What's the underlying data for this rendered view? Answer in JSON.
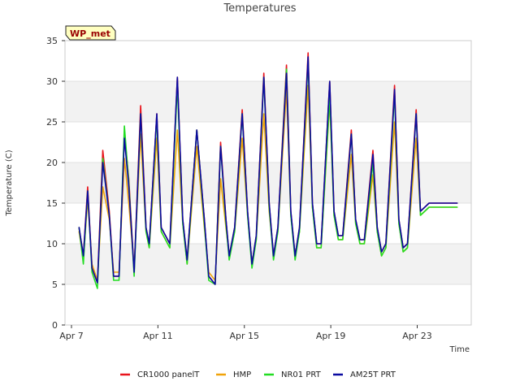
{
  "chart_data": {
    "type": "line",
    "title": "Temperatures",
    "xlabel": "Time",
    "ylabel": "Temperature (C)",
    "badge": "WP_met",
    "xlim": [
      6.7,
      25.5
    ],
    "ylim": [
      0,
      35
    ],
    "yticks": [
      0,
      5,
      10,
      15,
      20,
      25,
      30,
      35
    ],
    "xticks": [
      {
        "value": 7,
        "label": "Apr 7"
      },
      {
        "value": 11,
        "label": "Apr 11"
      },
      {
        "value": 15,
        "label": "Apr 15"
      },
      {
        "value": 19,
        "label": "Apr 19"
      },
      {
        "value": 23,
        "label": "Apr 23"
      }
    ],
    "grid": true,
    "legend_position": "bottom",
    "x": [
      7.35,
      7.55,
      7.75,
      7.95,
      8.2,
      8.45,
      8.75,
      8.95,
      9.2,
      9.45,
      9.65,
      9.9,
      10.2,
      10.45,
      10.6,
      10.95,
      11.15,
      11.55,
      11.9,
      12.15,
      12.35,
      12.8,
      13.15,
      13.35,
      13.65,
      13.9,
      14.15,
      14.3,
      14.55,
      14.9,
      15.15,
      15.35,
      15.55,
      15.9,
      16.15,
      16.35,
      16.55,
      16.95,
      17.15,
      17.35,
      17.55,
      17.95,
      18.15,
      18.35,
      18.55,
      18.95,
      19.15,
      19.35,
      19.55,
      19.95,
      20.15,
      20.35,
      20.55,
      20.95,
      21.15,
      21.35,
      21.55,
      21.95,
      22.15,
      22.35,
      22.55,
      22.95,
      23.15,
      23.35,
      23.55,
      23.95,
      24.15,
      24.35,
      24.55,
      24.85
    ],
    "series": [
      {
        "name": "CR1000 panelT",
        "color": "#e8141c",
        "values": [
          12,
          8.5,
          17,
          7,
          5.2,
          21.5,
          14,
          6,
          6,
          23.5,
          18,
          6.5,
          27,
          12,
          10,
          26,
          12,
          10,
          30.5,
          13,
          8,
          24,
          13,
          6,
          5,
          22.5,
          13,
          8.5,
          12,
          26.5,
          14,
          7.5,
          11,
          31,
          15,
          8.5,
          12,
          32,
          14,
          8.5,
          12,
          33.5,
          15,
          10,
          10,
          30,
          14,
          11,
          11,
          24,
          13,
          10.5,
          10.5,
          21.5,
          12,
          9,
          10,
          29.5,
          13,
          9.5,
          10,
          26.5,
          14,
          14.5,
          15,
          15,
          15,
          15,
          15,
          15
        ]
      },
      {
        "name": "HMP",
        "color": "#f0a30a",
        "values": [
          11.5,
          8,
          15.5,
          7.5,
          5.5,
          17,
          13,
          6.5,
          6.5,
          20.5,
          15,
          7,
          23.5,
          11.5,
          9.5,
          23,
          11.5,
          9.5,
          24,
          12.5,
          7.5,
          22,
          12,
          6.5,
          5.5,
          18,
          12,
          8.5,
          11.5,
          23,
          13.5,
          7.5,
          10.5,
          26,
          14,
          8.5,
          11.5,
          29,
          13.5,
          8.5,
          11.5,
          29.5,
          14.5,
          9.5,
          9.5,
          27.5,
          13.5,
          10.5,
          10.5,
          21,
          12.5,
          10,
          10,
          18.5,
          11.5,
          8.5,
          9.5,
          25,
          12.5,
          9,
          9.5,
          23,
          13.5,
          14,
          14.5,
          14.5,
          14.5,
          14.5,
          14.5,
          14.5
        ]
      },
      {
        "name": "NR01 PRT",
        "color": "#22dd22",
        "values": [
          12,
          7.5,
          16.5,
          6.5,
          4.5,
          20.5,
          13.5,
          5.5,
          5.5,
          24.5,
          17.5,
          6,
          26,
          11.5,
          9.5,
          25.5,
          11.5,
          9.5,
          29.5,
          12.5,
          7.5,
          24,
          12.5,
          5.5,
          5,
          22,
          12.5,
          8,
          11.5,
          26,
          13.5,
          7,
          10.5,
          30.5,
          14.5,
          8,
          11.5,
          31.5,
          13.5,
          8,
          11.5,
          32.5,
          14.5,
          9.5,
          9.5,
          28,
          13.5,
          10.5,
          10.5,
          23.5,
          12.5,
          10,
          10,
          20,
          11.5,
          8.5,
          9.5,
          28.5,
          12.5,
          9,
          9.5,
          26,
          13.5,
          14,
          14.5,
          14.5,
          14.5,
          14.5,
          14.5,
          14.5
        ]
      },
      {
        "name": "AM25T PRT",
        "color": "#0a0aa0",
        "values": [
          12,
          8.5,
          16.5,
          7,
          5.2,
          20,
          13.5,
          6,
          6,
          23,
          17,
          6.5,
          26,
          12,
          10,
          26,
          12,
          10,
          30.5,
          13,
          8,
          24,
          13,
          6,
          5,
          22,
          13,
          8.5,
          12,
          26,
          14,
          7.5,
          11,
          30.5,
          15,
          8.5,
          12,
          31,
          14,
          8.5,
          12,
          33,
          15,
          10,
          10,
          30,
          14,
          11,
          11,
          23.5,
          13,
          10.5,
          10.5,
          21,
          12,
          9,
          10,
          29,
          13,
          9.5,
          10,
          26,
          14,
          14.5,
          15,
          15,
          15,
          15,
          15,
          15
        ]
      }
    ]
  }
}
